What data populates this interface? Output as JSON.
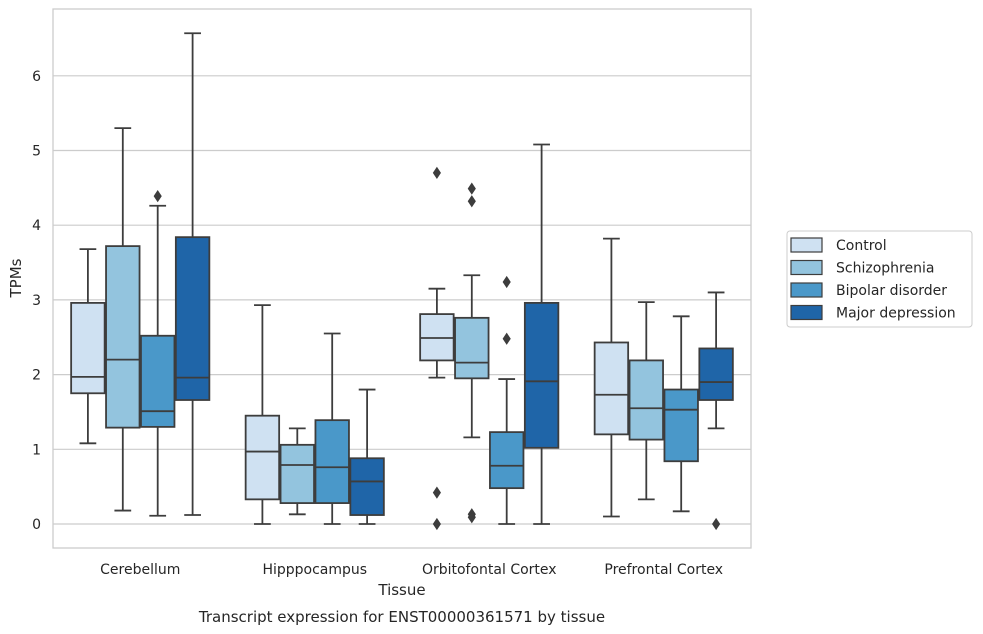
{
  "chart_data": {
    "type": "box",
    "xlabel": "Tissue",
    "ylabel": "TPMs",
    "caption": "Transcript expression for ENST00000361571 by tissue",
    "ylim": [
      -0.32,
      6.9
    ],
    "yticks": [
      0,
      1,
      2,
      3,
      4,
      5,
      6
    ],
    "grid": "horizontal",
    "legend_position": "right",
    "categories": [
      "Cerebellum",
      "Hipppocampus",
      "Orbitofontal Cortex",
      "Prefrontal Cortex"
    ],
    "series": [
      {
        "name": "Control",
        "color": "#cfe1f2",
        "boxes": [
          {
            "whislo": 1.08,
            "q1": 1.75,
            "med": 1.97,
            "q3": 2.96,
            "whishi": 3.68,
            "fliers": []
          },
          {
            "whislo": 0.0,
            "q1": 0.33,
            "med": 0.97,
            "q3": 1.45,
            "whishi": 2.93,
            "fliers": []
          },
          {
            "whislo": 1.96,
            "q1": 2.19,
            "med": 2.49,
            "q3": 2.81,
            "whishi": 3.15,
            "fliers": [
              4.7,
              0.42,
              0.0
            ]
          },
          {
            "whislo": 0.1,
            "q1": 1.2,
            "med": 1.73,
            "q3": 2.43,
            "whishi": 3.82,
            "fliers": []
          }
        ]
      },
      {
        "name": "Schizophrenia",
        "color": "#93c4de",
        "boxes": [
          {
            "whislo": 0.18,
            "q1": 1.29,
            "med": 2.2,
            "q3": 3.72,
            "whishi": 5.3,
            "fliers": []
          },
          {
            "whislo": 0.13,
            "q1": 0.28,
            "med": 0.79,
            "q3": 1.06,
            "whishi": 1.28,
            "fliers": []
          },
          {
            "whislo": 1.16,
            "q1": 1.95,
            "med": 2.16,
            "q3": 2.76,
            "whishi": 3.33,
            "fliers": [
              4.49,
              4.32,
              0.13,
              0.09
            ]
          },
          {
            "whislo": 0.33,
            "q1": 1.13,
            "med": 1.55,
            "q3": 2.19,
            "whishi": 2.97,
            "fliers": []
          }
        ]
      },
      {
        "name": "Bipolar disorder",
        "color": "#4a98c9",
        "boxes": [
          {
            "whislo": 0.11,
            "q1": 1.3,
            "med": 1.51,
            "q3": 2.52,
            "whishi": 4.26,
            "fliers": [
              4.39
            ]
          },
          {
            "whislo": 0.0,
            "q1": 0.28,
            "med": 0.76,
            "q3": 1.39,
            "whishi": 2.55,
            "fliers": []
          },
          {
            "whislo": 0.0,
            "q1": 0.48,
            "med": 0.78,
            "q3": 1.23,
            "whishi": 1.94,
            "fliers": [
              3.24,
              2.48
            ]
          },
          {
            "whislo": 0.17,
            "q1": 0.84,
            "med": 1.53,
            "q3": 1.8,
            "whishi": 2.78,
            "fliers": []
          }
        ]
      },
      {
        "name": "Major depression",
        "color": "#1f65a8",
        "boxes": [
          {
            "whislo": 0.12,
            "q1": 1.66,
            "med": 1.96,
            "q3": 3.84,
            "whishi": 6.57,
            "fliers": []
          },
          {
            "whislo": 0.0,
            "q1": 0.12,
            "med": 0.57,
            "q3": 0.88,
            "whishi": 1.8,
            "fliers": []
          },
          {
            "whislo": 0.0,
            "q1": 1.02,
            "med": 1.91,
            "q3": 2.96,
            "whishi": 5.08,
            "fliers": []
          },
          {
            "whislo": 1.28,
            "q1": 1.66,
            "med": 1.9,
            "q3": 2.35,
            "whishi": 3.1,
            "fliers": [
              0.0
            ]
          }
        ]
      }
    ]
  }
}
